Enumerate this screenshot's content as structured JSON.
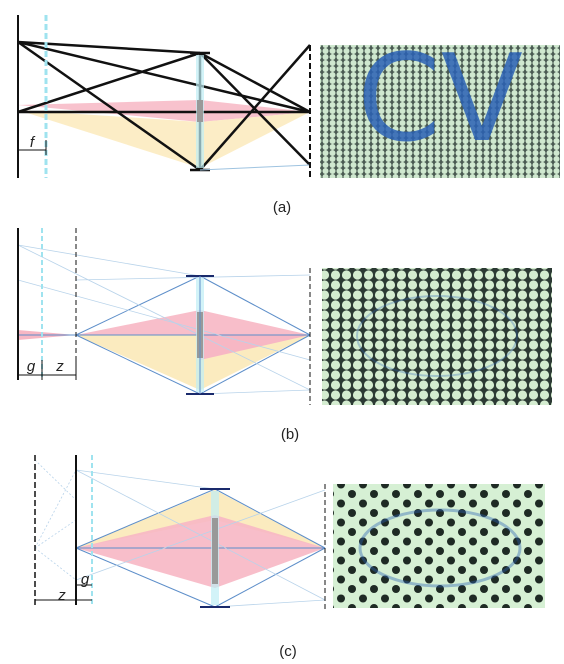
{
  "panels": [
    {
      "label": "(a)",
      "annotations": [
        "f"
      ],
      "image_text": "CV"
    },
    {
      "label": "(b)",
      "annotations": [
        "g",
        "z"
      ]
    },
    {
      "label": "(c)",
      "annotations": [
        "z",
        "g"
      ]
    }
  ]
}
